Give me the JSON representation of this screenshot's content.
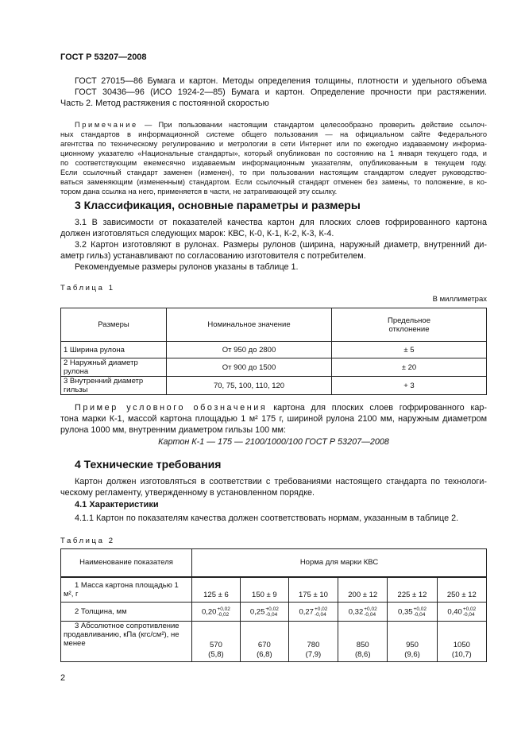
{
  "header": "ГОСТ Р 53207—2008",
  "refs": [
    "ГОСТ  27015—86  Бумага и картон. Методы определения толщины, плотности и удельного объема",
    "ГОСТ  30436—96 (ИСО  1924-2—85)  Бумага и картон. Определение прочности при растяжении.",
    "Часть 2. Метод растяжения с постоянной скоростью"
  ],
  "note": {
    "label": "Примечание",
    "lines": [
      "— При пользовании настоящим стандартом целесообразно проверить действие ссылоч-",
      "ных стандартов в информационной системе общего пользования — на официальном сайте Федерального",
      "агентства по техническому регулированию и метрологии в сети Интернет или по ежегодно издаваемому информа-",
      "ционному указателю «Национальные стандарты», который опубликован по состоянию на 1 января текущего года, и",
      "по соответствующим ежемесячно издаваемым информационным указателям, опубликованным в текущем году.",
      "Если ссылочный стандарт заменен (изменен), то при пользовании настоящим стандартом следует руководство-",
      "ваться заменяющим (измененным) стандартом. Если ссылочный стандарт отменен без замены, то положение, в ко-",
      "тором дана ссылка на него, применяется в части, не затрагивающей эту ссылку."
    ]
  },
  "s3": {
    "title": "3  Классификация, основные параметры и размеры",
    "lines": [
      "3.1  В зависимости от показателей качества картон для плоских слоев гофрированного картона",
      "должен изготовляться следующих марок: КВС, К-0, К-1, К-2, К-3, К-4.",
      "3.2  Картон изготовляют в рулонах. Размеры рулонов (ширина, наружный диаметр, внутренний ди-",
      "аметр гильз) устанавливают по согласованию изготовителя с потребителем.",
      "Рекомендуемые размеры рулонов указаны в таблице 1."
    ]
  },
  "table1": {
    "caption": "Таблица 1",
    "units": "В миллиметрах",
    "headers": [
      "Размеры",
      "Номинальное значение",
      "Предельное отклонение"
    ],
    "rows": [
      [
        "1 Ширина рулона",
        "От 950 до 2800",
        "± 5"
      ],
      [
        "2 Наружный диаметр рулона",
        "От 900 до 1500",
        "± 20"
      ],
      [
        "3 Внутренний диаметр гильзы",
        "70, 75, 100, 110, 120",
        "+ 3"
      ]
    ]
  },
  "example": {
    "label": "Пример условного обозначения",
    "lines": [
      "картона для плоских слоев гофрированного кар-",
      "тона марки К-1, массой картона площадью 1 м² 175 г, шириной рулона 2100 мм, наружным диаметром",
      "рулона 1000 мм, внутренним диаметром гильзы 100 мм:"
    ],
    "designation": "Картон К-1 — 175 — 2100/1000/100 ГОСТ Р 53207—2008"
  },
  "s4": {
    "title": "4  Технические требования",
    "lines": [
      "Картон должен изготовляться в соответствии с требованиями настоящего стандарта по технологи-",
      "ческому регламенту, утвержденному в установленном порядке."
    ],
    "sub": "4.1  Характеристики",
    "p411": "4.1.1  Картон по показателям качества должен соответствовать нормам, указанным в таблице 2."
  },
  "table2": {
    "caption": "Таблица 2",
    "h_name": "Наименование показателя",
    "h_norm": "Норма для марки КВС",
    "r1": {
      "label": "1 Масса картона площадью 1 м², г",
      "values": [
        "125 ± 6",
        "150 ± 9",
        "175 ± 10",
        "200 ± 12",
        "225 ± 12",
        "250 ± 12"
      ]
    },
    "r2": {
      "label": "2 Толщина, мм",
      "values": [
        {
          "base": "0,20",
          "plus": "+0,02",
          "minus": "-0,02"
        },
        {
          "base": "0,25",
          "plus": "+0,02",
          "minus": "-0,04"
        },
        {
          "base": "0,27",
          "plus": "+0,02",
          "minus": "-0,04"
        },
        {
          "base": "0,32",
          "plus": "+0,02",
          "minus": "-0,04"
        },
        {
          "base": "0,35",
          "plus": "+0,02",
          "minus": "-0,04"
        },
        {
          "base": "0,40",
          "plus": "+0,02",
          "minus": "-0,04"
        }
      ]
    },
    "r3": {
      "label": "3 Абсолютное сопротивление продавливанию, кПа (кгс/см²), не менее",
      "values": [
        "570",
        "670",
        "780",
        "850",
        "950",
        "1050"
      ],
      "sub": [
        "(5,8)",
        "(6,8)",
        "(7,9)",
        "(8,6)",
        "(9,6)",
        "(10,7)"
      ]
    }
  },
  "page_number": "2"
}
